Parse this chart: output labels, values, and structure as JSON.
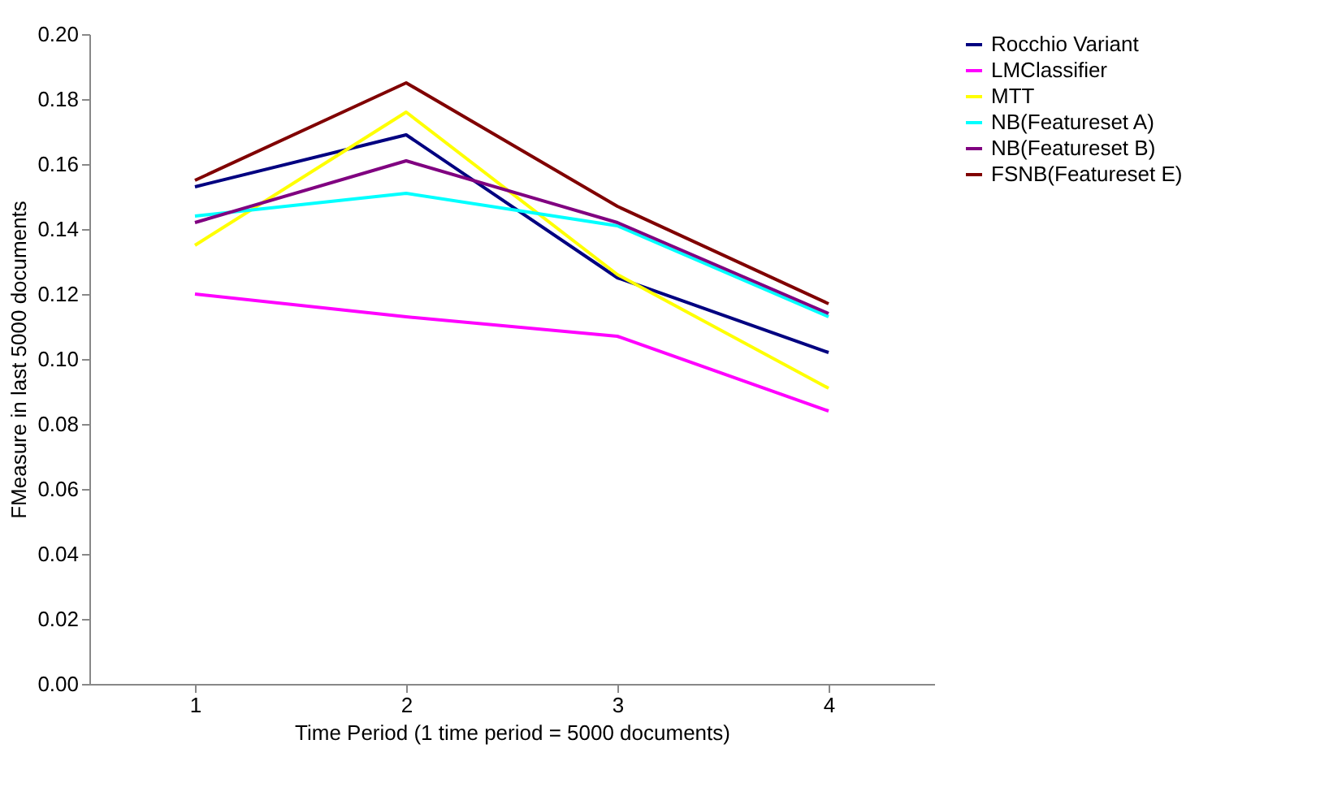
{
  "chart_data": {
    "type": "line",
    "xlabel": "Time Period (1 time period = 5000 documents)",
    "ylabel": "FMeasure in last 5000 documents",
    "categories": [
      "1",
      "2",
      "3",
      "4"
    ],
    "ylim": [
      0,
      0.2
    ],
    "yticks": [
      {
        "value": 0,
        "label": "0.00"
      },
      {
        "value": 0.02,
        "label": "0.02"
      },
      {
        "value": 0.04,
        "label": "0.04"
      },
      {
        "value": 0.06,
        "label": "0.06"
      },
      {
        "value": 0.08,
        "label": "0.08"
      },
      {
        "value": 0.1,
        "label": "0.10"
      },
      {
        "value": 0.12,
        "label": "0.12"
      },
      {
        "value": 0.14,
        "label": "0.14"
      },
      {
        "value": 0.16,
        "label": "0.16"
      },
      {
        "value": 0.18,
        "label": "0.18"
      },
      {
        "value": 0.2,
        "label": "0.20"
      }
    ],
    "grid": false,
    "legend": "right",
    "marker": "none",
    "line_style": "solid",
    "series": [
      {
        "name": "Rocchio Variant",
        "color": "#000080",
        "values": [
          0.153,
          0.169,
          0.125,
          0.102
        ]
      },
      {
        "name": "LMClassifier",
        "color": "#ff00ff",
        "values": [
          0.12,
          0.113,
          0.107,
          0.084
        ]
      },
      {
        "name": "MTT",
        "color": "#ffff00",
        "values": [
          0.135,
          0.176,
          0.126,
          0.091
        ]
      },
      {
        "name": "NB(Featureset A)",
        "color": "#00ffff",
        "values": [
          0.144,
          0.151,
          0.141,
          0.113
        ]
      },
      {
        "name": "NB(Featureset B)",
        "color": "#800080",
        "values": [
          0.142,
          0.161,
          0.142,
          0.114
        ]
      },
      {
        "name": "FSNB(Featureset E)",
        "color": "#800000",
        "values": [
          0.155,
          0.185,
          0.147,
          0.117
        ]
      }
    ]
  }
}
